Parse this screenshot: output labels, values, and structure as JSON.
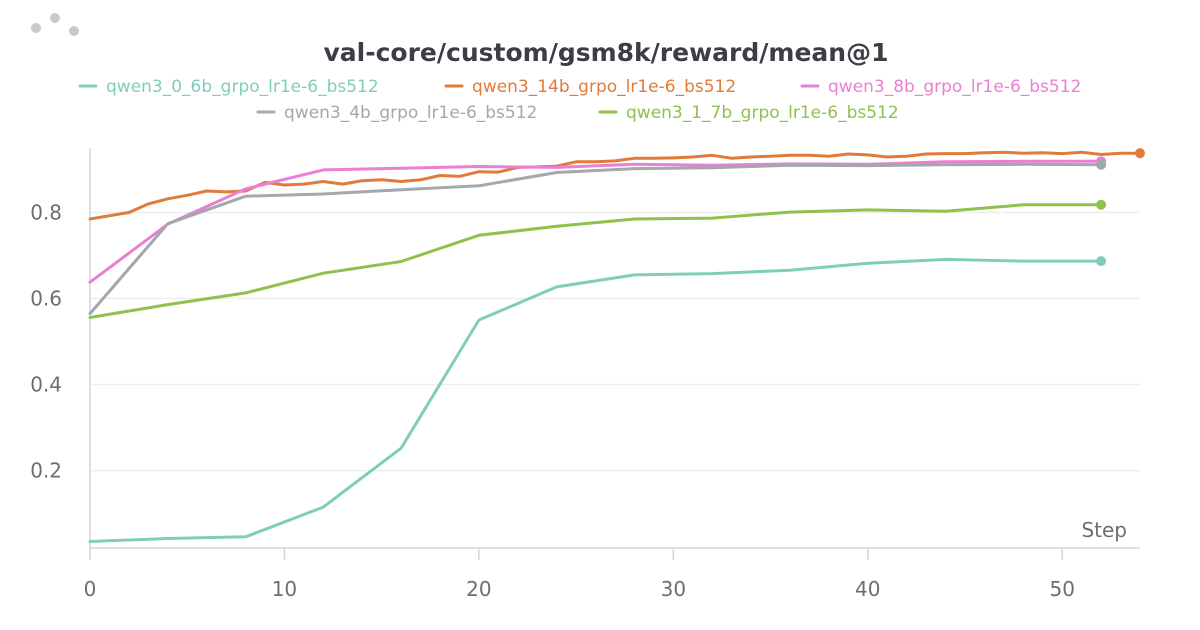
{
  "menu": {
    "icon": "drag-handle-dots-icon"
  },
  "chart_data": {
    "type": "line",
    "title": "val-core/custom/gsm8k/reward/mean@1",
    "xlabel": "Step",
    "ylabel": "",
    "xlim": [
      0,
      54
    ],
    "ylim": [
      0.02,
      0.95
    ],
    "xticks": [
      0,
      10,
      20,
      30,
      40,
      50
    ],
    "yticks": [
      0.2,
      0.4,
      0.6,
      0.8
    ],
    "grid": "horizontal",
    "legend_position": "top",
    "series": [
      {
        "name": "qwen3_0_6b_grpo_lr1e-6_bs512",
        "color": "#7fcdbb",
        "x": [
          0,
          4,
          8,
          12,
          16,
          20,
          24,
          28,
          32,
          36,
          40,
          44,
          48,
          52
        ],
        "y": [
          0.035,
          0.042,
          0.046,
          0.115,
          0.252,
          0.55,
          0.627,
          0.655,
          0.658,
          0.666,
          0.682,
          0.691,
          0.687,
          0.687
        ]
      },
      {
        "name": "qwen3_14b_grpo_lr1e-6_bs512",
        "color": "#e07b39",
        "x": [
          0,
          2,
          3,
          4,
          5,
          6,
          7,
          8,
          9,
          10,
          11,
          12,
          13,
          14,
          15,
          16,
          17,
          18,
          19,
          20,
          21,
          22,
          23,
          24,
          25,
          26,
          27,
          28,
          29,
          30,
          31,
          32,
          33,
          34,
          35,
          36,
          37,
          38,
          39,
          40,
          41,
          42,
          43,
          44,
          45,
          46,
          47,
          48,
          49,
          50,
          51,
          52,
          53,
          54
        ],
        "y": [
          0.785,
          0.8,
          0.82,
          0.832,
          0.84,
          0.85,
          0.848,
          0.85,
          0.87,
          0.864,
          0.866,
          0.872,
          0.866,
          0.874,
          0.876,
          0.872,
          0.876,
          0.886,
          0.884,
          0.895,
          0.894,
          0.905,
          0.906,
          0.908,
          0.918,
          0.918,
          0.92,
          0.926,
          0.926,
          0.927,
          0.929,
          0.933,
          0.926,
          0.929,
          0.931,
          0.933,
          0.933,
          0.931,
          0.936,
          0.934,
          0.929,
          0.931,
          0.936,
          0.937,
          0.937,
          0.939,
          0.94,
          0.938,
          0.939,
          0.937,
          0.94,
          0.935,
          0.938,
          0.938
        ]
      },
      {
        "name": "qwen3_8b_grpo_lr1e-6_bs512",
        "color": "#ea7fd3",
        "x": [
          0,
          4,
          8,
          12,
          16,
          20,
          24,
          28,
          32,
          36,
          40,
          44,
          48,
          52
        ],
        "y": [
          0.638,
          0.773,
          0.855,
          0.899,
          0.903,
          0.907,
          0.905,
          0.912,
          0.91,
          0.913,
          0.912,
          0.918,
          0.919,
          0.919
        ]
      },
      {
        "name": "qwen3_4b_grpo_lr1e-6_bs512",
        "color": "#a4a7ab",
        "x": [
          0,
          4,
          8,
          12,
          16,
          20,
          24,
          28,
          32,
          36,
          40,
          44,
          48,
          52
        ],
        "y": [
          0.565,
          0.774,
          0.838,
          0.843,
          0.853,
          0.862,
          0.893,
          0.902,
          0.904,
          0.91,
          0.909,
          0.911,
          0.912,
          0.911
        ]
      },
      {
        "name": "qwen3_1_7b_grpo_lr1e-6_bs512",
        "color": "#8fc14d",
        "x": [
          0,
          4,
          8,
          12,
          16,
          20,
          24,
          28,
          32,
          36,
          40,
          44,
          48,
          52
        ],
        "y": [
          0.556,
          0.586,
          0.613,
          0.659,
          0.686,
          0.747,
          0.768,
          0.785,
          0.787,
          0.801,
          0.806,
          0.803,
          0.818,
          0.818
        ]
      }
    ]
  }
}
